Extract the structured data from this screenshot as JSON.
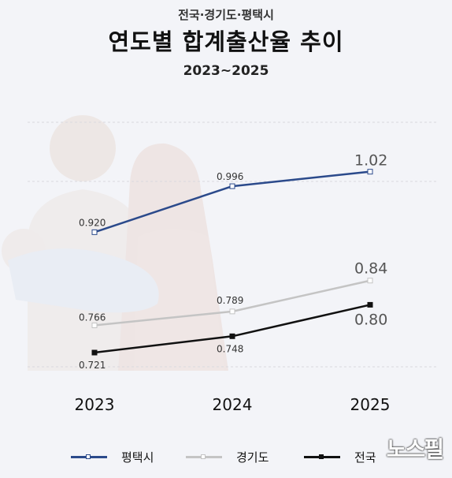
{
  "header": {
    "subtitle": "전국·경기도·평택시",
    "title": "연도별 합계출산율 추이",
    "period": "2023~2025"
  },
  "chart_data": {
    "type": "line",
    "title": "연도별 합계출산율 추이",
    "categories": [
      "2023",
      "2024",
      "2025"
    ],
    "series": [
      {
        "name": "평택시",
        "values": [
          0.92,
          0.996,
          1.02
        ],
        "labels": [
          "0.920",
          "0.996",
          "1.02"
        ],
        "color": "#2b4a8b"
      },
      {
        "name": "경기도",
        "values": [
          0.766,
          0.789,
          0.84
        ],
        "labels": [
          "0.766",
          "0.789",
          "0.84"
        ],
        "color": "#c4c4c4"
      },
      {
        "name": "전국",
        "values": [
          0.721,
          0.748,
          0.8
        ],
        "labels": [
          "0.721",
          "0.748",
          "0.80"
        ],
        "color": "#111111"
      }
    ],
    "grid": true,
    "legend_position": "bottom"
  },
  "watermark": "노스필"
}
